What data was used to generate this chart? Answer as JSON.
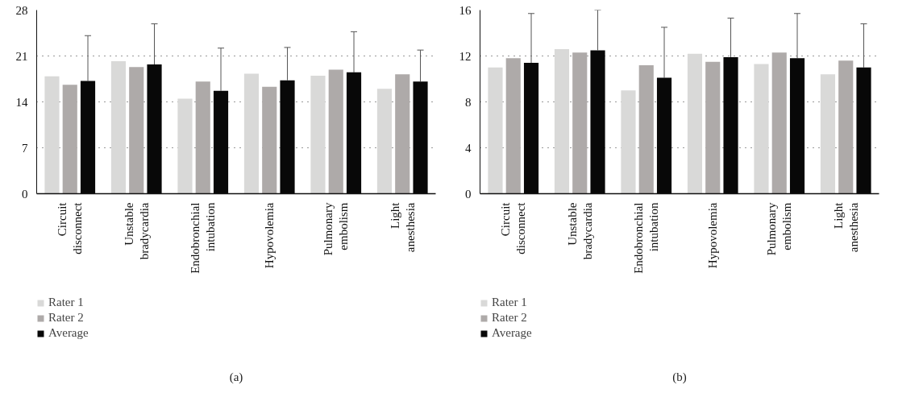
{
  "chart_data": [
    {
      "type": "bar",
      "categories": [
        "Circuit disconnect",
        "Unstable bradycardia",
        "Endobronchial intubation",
        "Hypovolemia",
        "Pulmonary embolism",
        "Light anesthesia"
      ],
      "series": [
        {
          "name": "Rater 1",
          "color": "#d9d9d8",
          "values": [
            17.9,
            20.2,
            14.5,
            18.3,
            18.0,
            16.0
          ]
        },
        {
          "name": "Rater 2",
          "color": "#aeaaa9",
          "values": [
            16.6,
            19.3,
            17.1,
            16.3,
            18.9,
            18.2
          ]
        },
        {
          "name": "Average",
          "color": "#080808",
          "values": [
            17.2,
            19.7,
            15.7,
            17.3,
            18.5,
            17.1
          ],
          "errors": [
            [
              17.2,
              24.1
            ],
            [
              19.7,
              25.9
            ],
            [
              15.7,
              22.2
            ],
            [
              17.3,
              22.3
            ],
            [
              18.5,
              24.7
            ],
            [
              17.1,
              21.9
            ]
          ]
        }
      ],
      "ylim": [
        0,
        28
      ],
      "yticks": [
        0,
        7,
        14,
        21,
        28
      ],
      "grid": "y",
      "legend": "bottom left",
      "annotations": [
        "(a)"
      ]
    },
    {
      "type": "bar",
      "categories": [
        "Circuit disconnect",
        "Unstable bradycardia",
        "Endobronchial intubation",
        "Hypovolemia",
        "Pulmonary embolism",
        "Light anesthesia"
      ],
      "series": [
        {
          "name": "Rater 1",
          "color": "#d9d9d8",
          "values": [
            11.0,
            12.6,
            9.0,
            12.2,
            11.3,
            10.4
          ]
        },
        {
          "name": "Rater 2",
          "color": "#aeaaa9",
          "values": [
            11.8,
            12.3,
            11.2,
            11.5,
            12.3,
            11.6
          ]
        },
        {
          "name": "Average",
          "color": "#080808",
          "values": [
            11.4,
            12.5,
            10.1,
            11.9,
            11.8,
            11.0
          ],
          "errors": [
            [
              11.4,
              15.7
            ],
            [
              12.5,
              16.0
            ],
            [
              10.1,
              14.5
            ],
            [
              11.9,
              15.3
            ],
            [
              11.8,
              15.7
            ],
            [
              11.0,
              14.8
            ]
          ]
        }
      ],
      "ylim": [
        0,
        16
      ],
      "yticks": [
        0,
        4,
        8,
        12,
        16
      ],
      "grid": "y",
      "legend": "bottom left",
      "annotations": [
        "(b)"
      ]
    }
  ]
}
